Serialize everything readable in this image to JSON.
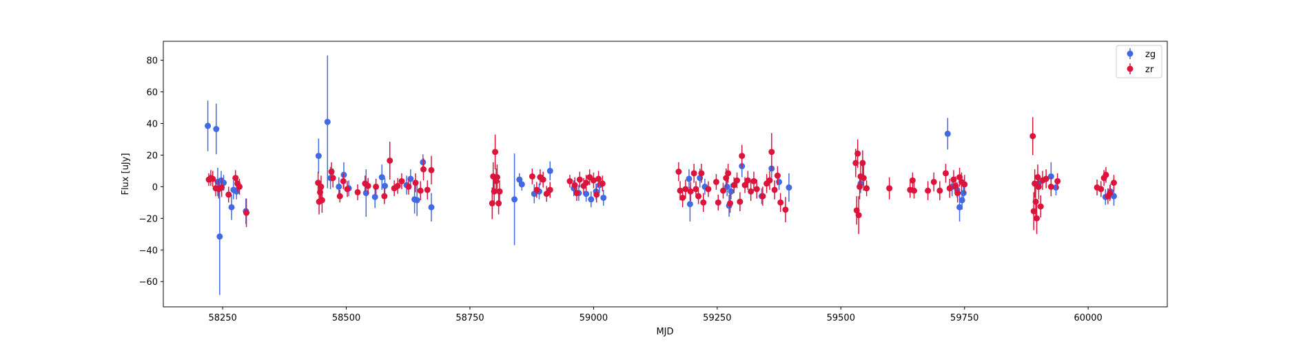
{
  "chart_data": {
    "type": "scatter",
    "title": "",
    "xlabel": "MJD",
    "ylabel": "Flux [uJy]",
    "xlim": [
      58130,
      60160
    ],
    "ylim": [
      -76,
      92
    ],
    "xticks": [
      58250,
      58500,
      58750,
      59000,
      59250,
      59500,
      59750,
      60000
    ],
    "yticks": [
      -60,
      -40,
      -20,
      0,
      20,
      40,
      60,
      80
    ],
    "grid": false,
    "legend_position": "top-right",
    "series": [
      {
        "name": "zg",
        "color": "#4169e1",
        "points": [
          [
            58220,
            38.5,
            16
          ],
          [
            58237,
            36.5,
            16
          ],
          [
            58240,
            3,
            9
          ],
          [
            58244,
            -31.5,
            37
          ],
          [
            58247,
            4,
            6
          ],
          [
            58252,
            2.5,
            5
          ],
          [
            58268,
            -13,
            8
          ],
          [
            58272,
            -2,
            6
          ],
          [
            58278,
            -3,
            5
          ],
          [
            58297,
            -15.5,
            8
          ],
          [
            58444,
            19.5,
            11
          ],
          [
            58462,
            41,
            42
          ],
          [
            58468,
            5.5,
            7
          ],
          [
            58485,
            0,
            6
          ],
          [
            58495,
            7.5,
            8
          ],
          [
            58505,
            -1,
            5
          ],
          [
            58540,
            -4,
            15
          ],
          [
            58558,
            -6.5,
            7
          ],
          [
            58572,
            6,
            8
          ],
          [
            58578,
            0.5,
            5
          ],
          [
            58622,
            1,
            6
          ],
          [
            58630,
            5,
            6
          ],
          [
            58638,
            -8,
            9
          ],
          [
            58643,
            -8.5,
            10
          ],
          [
            58655,
            15.5,
            5
          ],
          [
            58672,
            -13,
            9
          ],
          [
            58840,
            -8,
            29
          ],
          [
            58850,
            4.5,
            4
          ],
          [
            58855,
            1.5,
            4
          ],
          [
            58880,
            -4.5,
            6
          ],
          [
            58890,
            -3,
            5
          ],
          [
            58912,
            10,
            6
          ],
          [
            58960,
            -1,
            5
          ],
          [
            58970,
            -4,
            5
          ],
          [
            58985,
            -4.5,
            5
          ],
          [
            58995,
            -8,
            5
          ],
          [
            59005,
            -3,
            5
          ],
          [
            59012,
            1,
            5
          ],
          [
            59020,
            -7,
            5
          ],
          [
            59193,
            5,
            6
          ],
          [
            59195,
            -11,
            11
          ],
          [
            59215,
            5.5,
            6
          ],
          [
            59225,
            0,
            5
          ],
          [
            59270,
            0,
            6
          ],
          [
            59274,
            -12,
            7
          ],
          [
            59278,
            -3,
            5
          ],
          [
            59300,
            13,
            7
          ],
          [
            59340,
            -6,
            5
          ],
          [
            59360,
            11.5,
            6
          ],
          [
            59375,
            3,
            5
          ],
          [
            59395,
            -0.5,
            9
          ],
          [
            59540,
            2,
            6
          ],
          [
            59716,
            33.5,
            10
          ],
          [
            59725,
            0,
            6
          ],
          [
            59735,
            -2,
            5
          ],
          [
            59740,
            -13,
            9
          ],
          [
            59745,
            -8.5,
            6
          ],
          [
            59748,
            -4,
            5
          ],
          [
            59900,
            2,
            5
          ],
          [
            59925,
            6.5,
            9
          ],
          [
            59935,
            -0.5,
            5
          ],
          [
            60035,
            -6.5,
            5
          ],
          [
            60045,
            -3,
            5
          ],
          [
            60052,
            -6,
            6
          ]
        ]
      },
      {
        "name": "zr",
        "color": "#dc143c",
        "points": [
          [
            58222,
            4.5,
            4
          ],
          [
            58226,
            5.5,
            5
          ],
          [
            58230,
            5,
            5
          ],
          [
            58236,
            -1,
            5
          ],
          [
            58242,
            -1.5,
            6
          ],
          [
            58248,
            -0.5,
            6
          ],
          [
            58262,
            -5,
            5
          ],
          [
            58276,
            5.5,
            5
          ],
          [
            58280,
            2,
            5
          ],
          [
            58284,
            0,
            5
          ],
          [
            58298,
            -16.5,
            9
          ],
          [
            58443,
            2.5,
            7
          ],
          [
            58445,
            -9.5,
            8
          ],
          [
            58447,
            -3.5,
            7
          ],
          [
            58449,
            0,
            7
          ],
          [
            58451,
            -8.5,
            8
          ],
          [
            58470,
            9.5,
            6
          ],
          [
            58473,
            5.5,
            6
          ],
          [
            58487,
            -6,
            4
          ],
          [
            58494,
            3.5,
            5
          ],
          [
            58502,
            -1.5,
            5
          ],
          [
            58523,
            -3.5,
            5
          ],
          [
            58538,
            2,
            5
          ],
          [
            58544,
            0.5,
            5
          ],
          [
            58560,
            0,
            5
          ],
          [
            58577,
            -6,
            5
          ],
          [
            58588,
            16.5,
            12
          ],
          [
            58597,
            -1,
            5
          ],
          [
            58604,
            0.5,
            5
          ],
          [
            58612,
            3.5,
            5
          ],
          [
            58626,
            0,
            5
          ],
          [
            58640,
            2.5,
            6
          ],
          [
            58650,
            -2.5,
            6
          ],
          [
            58656,
            11,
            7
          ],
          [
            58664,
            -2,
            6
          ],
          [
            58672,
            10.5,
            9
          ],
          [
            58795,
            -10.5,
            10
          ],
          [
            58797,
            6.5,
            9
          ],
          [
            58799,
            -3,
            7
          ],
          [
            58801,
            22,
            11
          ],
          [
            58803,
            3.5,
            8
          ],
          [
            58805,
            6,
            8
          ],
          [
            58808,
            -10.5,
            7
          ],
          [
            58810,
            -3,
            7
          ],
          [
            58876,
            6.5,
            5
          ],
          [
            58885,
            -2,
            5
          ],
          [
            58892,
            6,
            5
          ],
          [
            58898,
            4.5,
            5
          ],
          [
            58905,
            -4.5,
            5
          ],
          [
            58912,
            -2,
            5
          ],
          [
            58952,
            3.5,
            4
          ],
          [
            58962,
            1,
            5
          ],
          [
            58966,
            -4,
            5
          ],
          [
            58972,
            4.5,
            5
          ],
          [
            58980,
            0.5,
            5
          ],
          [
            58985,
            2.5,
            5
          ],
          [
            58992,
            6,
            5
          ],
          [
            59000,
            4,
            5
          ],
          [
            59006,
            -5,
            5
          ],
          [
            59010,
            5,
            5
          ],
          [
            59018,
            2,
            5
          ],
          [
            59172,
            9.5,
            6
          ],
          [
            59175,
            -2.5,
            6
          ],
          [
            59180,
            -7,
            6
          ],
          [
            59186,
            -1.5,
            6
          ],
          [
            59196,
            -3,
            6
          ],
          [
            59203,
            8.5,
            6
          ],
          [
            59207,
            -1.5,
            5
          ],
          [
            59212,
            -6,
            5
          ],
          [
            59218,
            8.5,
            6
          ],
          [
            59222,
            -10,
            6
          ],
          [
            59232,
            -1.5,
            5
          ],
          [
            59248,
            3,
            5
          ],
          [
            59252,
            -10,
            5
          ],
          [
            59262,
            -2.5,
            5
          ],
          [
            59268,
            5.5,
            6
          ],
          [
            59272,
            8.5,
            6
          ],
          [
            59276,
            -10.5,
            6
          ],
          [
            59284,
            1,
            5
          ],
          [
            59290,
            4,
            5
          ],
          [
            59296,
            -9.5,
            6
          ],
          [
            59300,
            19.5,
            7
          ],
          [
            59306,
            1,
            5
          ],
          [
            59312,
            4,
            6
          ],
          [
            59318,
            -3,
            6
          ],
          [
            59324,
            3.5,
            6
          ],
          [
            59330,
            -1.5,
            6
          ],
          [
            59342,
            -6,
            6
          ],
          [
            59350,
            2,
            6
          ],
          [
            59356,
            4,
            6
          ],
          [
            59360,
            22,
            12
          ],
          [
            59366,
            -2,
            6
          ],
          [
            59372,
            7,
            6
          ],
          [
            59378,
            -10,
            6
          ],
          [
            59388,
            -14.5,
            8
          ],
          [
            59530,
            15,
            9
          ],
          [
            59532,
            -15,
            9
          ],
          [
            59534,
            21,
            9
          ],
          [
            59536,
            -18,
            12
          ],
          [
            59538,
            0,
            8
          ],
          [
            59540,
            6.5,
            8
          ],
          [
            59544,
            15,
            8
          ],
          [
            59546,
            5.5,
            8
          ],
          [
            59552,
            -1,
            5
          ],
          [
            59598,
            -1,
            7
          ],
          [
            59640,
            -2,
            5
          ],
          [
            59645,
            4,
            5
          ],
          [
            59648,
            -2.5,
            5
          ],
          [
            59676,
            -2.5,
            6
          ],
          [
            59688,
            3,
            6
          ],
          [
            59700,
            -2.5,
            6
          ],
          [
            59712,
            8.5,
            6
          ],
          [
            59720,
            -1,
            6
          ],
          [
            59728,
            4.5,
            6
          ],
          [
            59732,
            0.5,
            6
          ],
          [
            59736,
            -4,
            6
          ],
          [
            59740,
            6,
            6
          ],
          [
            59744,
            3,
            6
          ],
          [
            59750,
            1.5,
            6
          ],
          [
            59888,
            32,
            12
          ],
          [
            59890,
            -15.5,
            12
          ],
          [
            59892,
            2,
            9
          ],
          [
            59894,
            -9.5,
            10
          ],
          [
            59896,
            -20,
            10
          ],
          [
            59898,
            6,
            8
          ],
          [
            59900,
            0,
            8
          ],
          [
            59904,
            -12.5,
            7
          ],
          [
            59908,
            4,
            6
          ],
          [
            59915,
            5,
            6
          ],
          [
            59925,
            0,
            6
          ],
          [
            59938,
            3.5,
            5
          ],
          [
            60018,
            -0.5,
            5
          ],
          [
            60026,
            -1.5,
            5
          ],
          [
            60032,
            5.5,
            5
          ],
          [
            60036,
            7.5,
            5
          ],
          [
            60040,
            -6,
            5
          ],
          [
            60044,
            -4,
            5
          ],
          [
            60052,
            2.5,
            5
          ]
        ]
      }
    ]
  }
}
